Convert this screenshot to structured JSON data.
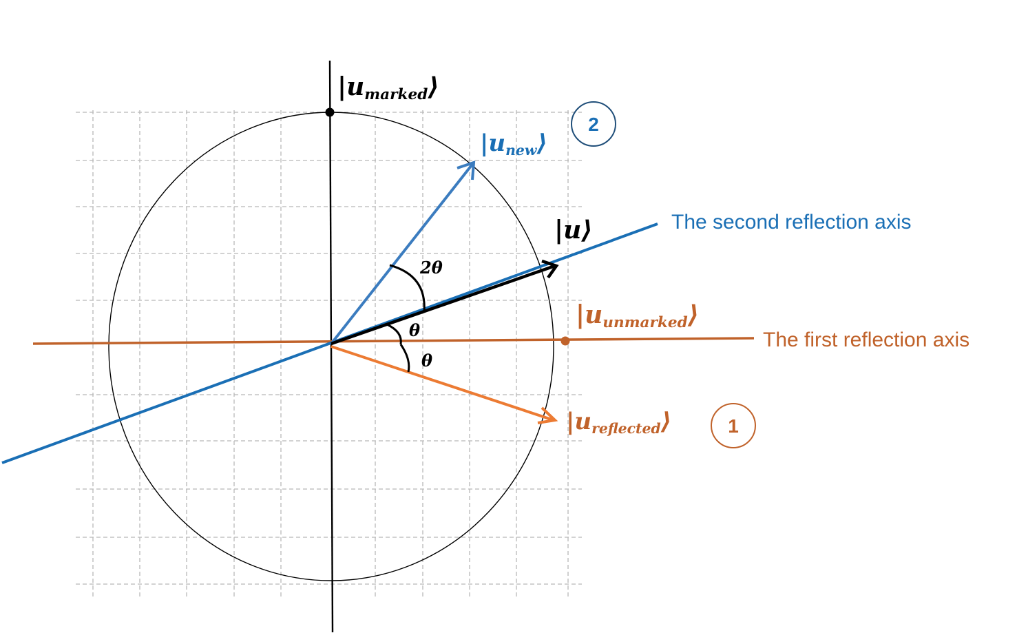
{
  "colors": {
    "black": "#000000",
    "blue": "#1a6fb5",
    "vector_blue": "#3b7cbf",
    "orange": "#c0622a",
    "vector_orange": "#ec7b33",
    "grid": "#b8b8b8"
  },
  "vectors": {
    "u_marked": {
      "symbol": "u",
      "subscript": "marked"
    },
    "u_new": {
      "symbol": "u",
      "subscript": "new"
    },
    "u": {
      "symbol": "u",
      "subscript": ""
    },
    "u_unmarked": {
      "symbol": "u",
      "subscript": "unmarked"
    },
    "u_reflected": {
      "symbol": "u",
      "subscript": "reflected"
    }
  },
  "angles": {
    "two_theta": "2θ",
    "theta_upper": "θ",
    "theta_lower": "θ"
  },
  "axes": {
    "second_reflection": "The second reflection axis",
    "first_reflection": "The first reflection axis"
  },
  "steps": {
    "step_1": "1",
    "step_2": "2"
  }
}
